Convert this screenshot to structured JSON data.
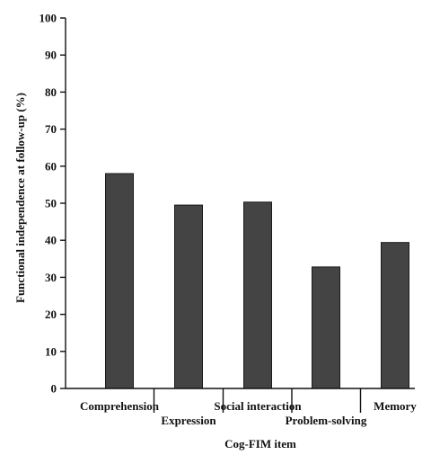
{
  "chart_data": {
    "type": "bar",
    "categories": [
      "Comprehension",
      "Expression",
      "Social interaction",
      "Problem-solving",
      "Memory"
    ],
    "values": [
      58,
      49.5,
      50.3,
      32.8,
      39.4
    ],
    "xlabel": "Cog-FIM item",
    "ylabel": "Functional independence at follow-up (%)",
    "ylim": [
      0,
      100
    ],
    "yticks": [
      0,
      10,
      20,
      30,
      40,
      50,
      60,
      70,
      80,
      90,
      100
    ],
    "grid": false,
    "legend": "none",
    "bar_color": "#444444",
    "label_rows": [
      "upper",
      "lower",
      "upper",
      "lower",
      "upper"
    ]
  }
}
